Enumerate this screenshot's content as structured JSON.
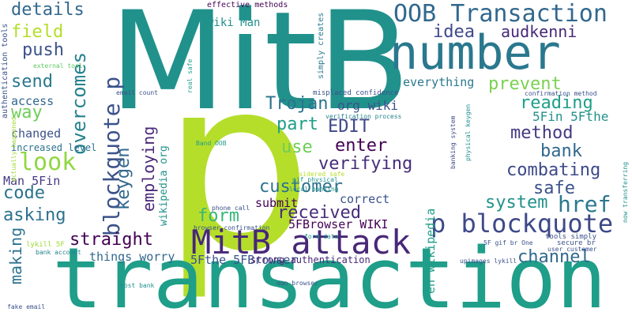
{
  "words": [
    {
      "id": "w-p",
      "text": "p",
      "color": "#b5de2b"
    },
    {
      "id": "w-mitb",
      "text": "MitB",
      "color": "#21918c"
    },
    {
      "id": "w-transaction",
      "text": "transaction",
      "color": "#1f9e89"
    },
    {
      "id": "w-number",
      "text": "number",
      "color": "#2a788e"
    },
    {
      "id": "w-mitb-attack",
      "text": "MitB attack",
      "color": "#482878"
    },
    {
      "id": "w-oob-transaction",
      "text": "OOB Transaction",
      "color": "#31688e"
    },
    {
      "id": "w-blockquote-p",
      "text": "blockquote p",
      "color": "#3b528b"
    },
    {
      "id": "w-p-blockquote",
      "text": "p blockquote",
      "color": "#3e4989"
    },
    {
      "id": "w-details",
      "text": "details",
      "color": "#31688e"
    },
    {
      "id": "w-field",
      "text": "field",
      "color": "#b5de2b"
    },
    {
      "id": "w-push",
      "text": "push",
      "color": "#3b528b"
    },
    {
      "id": "w-send",
      "text": "send",
      "color": "#2a788e"
    },
    {
      "id": "w-way",
      "text": "way",
      "color": "#6ece58"
    },
    {
      "id": "w-look",
      "text": "look",
      "color": "#90d743"
    },
    {
      "id": "w-overcomes",
      "text": "overcomes",
      "color": "#26828e"
    },
    {
      "id": "w-idea",
      "text": "idea",
      "color": "#3e4989"
    },
    {
      "id": "w-audkenni",
      "text": "audkenni",
      "color": "#482878"
    },
    {
      "id": "w-prevent",
      "text": "prevent",
      "color": "#7ad151"
    },
    {
      "id": "w-everything",
      "text": "everything",
      "color": "#2a788e"
    },
    {
      "id": "w-reading",
      "text": "reading",
      "color": "#1f9e89"
    },
    {
      "id": "w-trojan",
      "text": "Trojan",
      "color": "#2c728e"
    },
    {
      "id": "w-org-wiki",
      "text": "org wiki",
      "color": "#3b528b"
    },
    {
      "id": "w-5fin-5fthe",
      "text": "5Fin 5Fthe",
      "color": "#21918c"
    },
    {
      "id": "w-edit",
      "text": "EDIT",
      "color": "#3e4989"
    },
    {
      "id": "w-part",
      "text": "part",
      "color": "#1f9e89"
    },
    {
      "id": "w-method",
      "text": "method",
      "color": "#443983"
    },
    {
      "id": "w-use",
      "text": "use",
      "color": "#6ece58"
    },
    {
      "id": "w-enter",
      "text": "enter",
      "color": "#440154"
    },
    {
      "id": "w-bank",
      "text": "bank",
      "color": "#31688e"
    },
    {
      "id": "w-verifying",
      "text": "verifying",
      "color": "#472d7b"
    },
    {
      "id": "w-combating",
      "text": "combating",
      "color": "#3e4989"
    },
    {
      "id": "w-customer",
      "text": "customer",
      "color": "#2c728e"
    },
    {
      "id": "w-safe",
      "text": "safe",
      "color": "#3b528b"
    },
    {
      "id": "w-href",
      "text": "href",
      "color": "#2a788e"
    },
    {
      "id": "w-form",
      "text": "form",
      "color": "#35b779"
    },
    {
      "id": "w-received",
      "text": "received",
      "color": "#472d7b"
    },
    {
      "id": "w-system",
      "text": "system",
      "color": "#21918c"
    },
    {
      "id": "w-submit",
      "text": "submit",
      "color": "#440154"
    },
    {
      "id": "w-correct",
      "text": "correct",
      "color": "#3b528b"
    },
    {
      "id": "w-keygen",
      "text": "keygen",
      "color": "#31688e"
    },
    {
      "id": "w-employing",
      "text": "employing",
      "color": "#482878"
    },
    {
      "id": "w-code",
      "text": "code",
      "color": "#2c728e"
    },
    {
      "id": "w-man-5fin",
      "text": "Man 5Fin",
      "color": "#443983"
    },
    {
      "id": "w-asking",
      "text": "asking",
      "color": "#2c728e"
    },
    {
      "id": "w-straight",
      "text": "straight",
      "color": "#440154"
    },
    {
      "id": "w-things-worry",
      "text": "things worry",
      "color": "#31688e"
    },
    {
      "id": "w-channel",
      "text": "channel",
      "color": "#31688e"
    },
    {
      "id": "w-making",
      "text": "making",
      "color": "#2c728e"
    },
    {
      "id": "w-5fbrowser-wiki",
      "text": "5FBrowser WIKI",
      "color": "#440154"
    },
    {
      "id": "w-5fthe-5fbrowser",
      "text": "5Fthe 5FBrowser",
      "color": "#3b528b"
    },
    {
      "id": "w-strong-authentication",
      "text": "strong authentication",
      "color": "#482878"
    },
    {
      "id": "w-en-wikipedia",
      "text": "en wikipedia",
      "color": "#1f9e89"
    },
    {
      "id": "w-wikipedia-org",
      "text": "wikipedia org",
      "color": "#21918c"
    },
    {
      "id": "w-wiki-man",
      "text": "wiki Man",
      "color": "#21918c"
    },
    {
      "id": "w-changed",
      "text": "changed",
      "color": "#3b528b"
    },
    {
      "id": "w-access",
      "text": "access",
      "color": "#31688e"
    },
    {
      "id": "w-increased-level",
      "text": "increased level",
      "color": "#2c728e"
    },
    {
      "id": "w-effective-methods",
      "text": "effective methods",
      "color": "#440154"
    },
    {
      "id": "w-simply-creates",
      "text": "simply creates",
      "color": "#2a788e"
    },
    {
      "id": "w-authentication-tools",
      "text": "authentication tools",
      "color": "#3b528b"
    },
    {
      "id": "w-external-tool",
      "text": "external tool",
      "color": "#5ec962"
    },
    {
      "id": "w-real-safe",
      "text": "real safe",
      "color": "#1f9e89"
    },
    {
      "id": "w-email-count",
      "text": "email count",
      "color": "#3b528b"
    },
    {
      "id": "w-misplaced-confidence",
      "text": "misplaced confidence",
      "color": "#3b528b"
    },
    {
      "id": "w-verification-process",
      "text": "verification process",
      "color": "#26828e"
    },
    {
      "id": "w-confirmation-method",
      "text": "confirmation method",
      "color": "#3b528b"
    },
    {
      "id": "w-band-oob",
      "text": "Band OOB",
      "color": "#1f9e89"
    },
    {
      "id": "w-banking-system",
      "text": "banking system",
      "color": "#3e4989"
    },
    {
      "id": "w-physical-keygen",
      "text": "physical keygen",
      "color": "#21918c"
    },
    {
      "id": "w-considered-safe",
      "text": "considered safe",
      "color": "#b5de2b"
    },
    {
      "id": "w-gif-physical",
      "text": "gif physical",
      "color": "#21918c"
    },
    {
      "id": "w-local-banking",
      "text": "local banking",
      "color": "#21918c"
    },
    {
      "id": "w-phone-call",
      "text": "phone call",
      "color": "#3b528b"
    },
    {
      "id": "w-browser-confirmation",
      "text": "browser confirmation",
      "color": "#3b528b"
    },
    {
      "id": "w-form-data",
      "text": "form data",
      "color": "#21918c"
    },
    {
      "id": "w-actually-happened",
      "text": "actually happened",
      "color": "#a0da39"
    },
    {
      "id": "w-lykill-5f",
      "text": "lykill 5F",
      "color": "#a0da39"
    },
    {
      "id": "w-bank-account",
      "text": "bank account",
      "color": "#26828e"
    },
    {
      "id": "w-tools-simply",
      "text": "tools simply",
      "color": "#3b528b"
    },
    {
      "id": "w-secure-br",
      "text": "secure br",
      "color": "#3b528b"
    },
    {
      "id": "w-5f-gif-br-one",
      "text": "5F gif br One",
      "color": "#3b528b"
    },
    {
      "id": "w-user-customer",
      "text": "user customer",
      "color": "#3b528b"
    },
    {
      "id": "w-upimages-lykill",
      "text": "upimages lykill",
      "color": "#3b528b"
    },
    {
      "id": "w-now-transferring",
      "text": "now transferring",
      "color": "#21918c"
    },
    {
      "id": "w-host-bank",
      "text": "host bank",
      "color": "#21918c"
    },
    {
      "id": "w-non-browser",
      "text": "non browser",
      "color": "#3b528b"
    },
    {
      "id": "w-fake-email",
      "text": "fake email",
      "color": "#3b528b"
    }
  ]
}
